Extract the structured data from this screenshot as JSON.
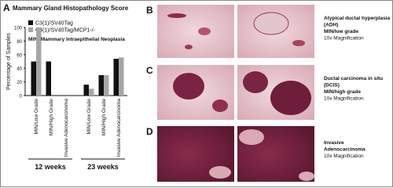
{
  "chart_data": {
    "type": "bar",
    "panel_letter": "A",
    "title": "Mammary Gland Histopathology Score",
    "ylabel": "Percentage of Samples",
    "annotation": "MIN: Mammary Intraepithelial Neoplasia",
    "categories": [
      "MIN/Low Grade",
      "MIN/High Grade",
      "Invasive Adenocarcinoma",
      "MIN/Low Grade",
      "MIN/High Grade",
      "Invasive Adenocarcinoma"
    ],
    "groups": [
      "12 weeks",
      "23 weeks"
    ],
    "series": [
      {
        "name": "C3(1)/SV40Tag",
        "color": "#111111",
        "values": [
          50,
          50,
          0,
          16,
          30,
          54
        ]
      },
      {
        "name": "C3(1)/SV40Tag/MCP1-/-",
        "color": "#a6a6a6",
        "values": [
          100,
          0,
          0,
          10,
          30,
          56
        ]
      }
    ],
    "ylim": [
      0,
      100
    ],
    "yticks": [
      0,
      20,
      40,
      60,
      80,
      100
    ]
  },
  "panels": [
    {
      "letter": "B",
      "caption": [
        "Atypical ductal hyperplasia",
        "(ADH)",
        "MIN/low grade",
        "10x Magnification"
      ]
    },
    {
      "letter": "C",
      "caption": [
        "Ductal carcinoma in situ",
        "(DCIS)",
        "MIN/high grade",
        "10x Magnification"
      ]
    },
    {
      "letter": "D",
      "caption": [
        "Invasive",
        "Adenocarcinoma",
        "10x Magnification"
      ]
    }
  ]
}
